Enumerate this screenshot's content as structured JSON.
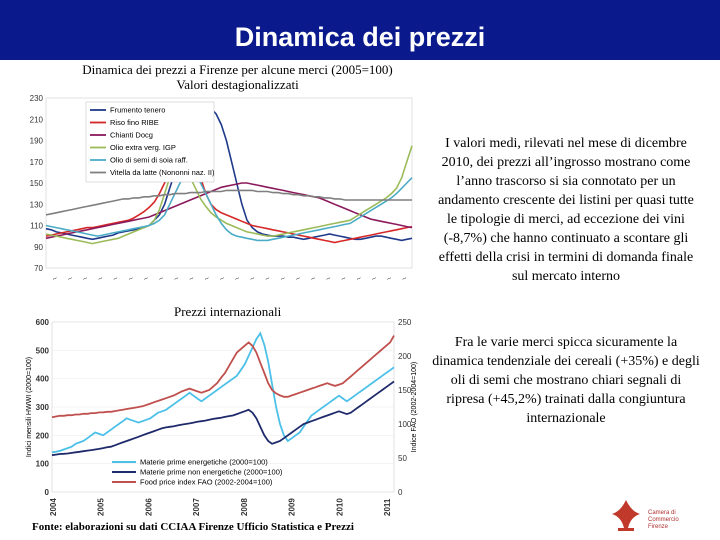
{
  "slide": {
    "title": "Dinamica dei prezzi",
    "chart1_caption_line1": "Dinamica dei prezzi a Firenze per alcune merci (2005=100)",
    "chart1_caption_line2": "Valori destagionalizzati",
    "chart2_label": "Prezzi internazionali",
    "paragraph1": "I valori medi, rilevati nel mese di dicembre 2010, dei prezzi all’ingrosso mostrano come l’anno trascorso si sia connotato per un andamento crescente dei listini per quasi tutte le tipologie di merci, ad eccezione dei vini (-8,7%) che hanno continuato a scontare gli effetti della crisi in termini di domanda finale sul mercato interno",
    "paragraph2": "Fra le varie merci spicca sicuramente la dinamica tendenziale dei cereali (+35%) e degli oli di semi che mostrano chiari segnali di ripresa (+45,2%) trainati dalla congiuntura internazionale",
    "source": "Fonte: elaborazioni su dati CCIAA Firenze Ufficio Statistica e Prezzi",
    "logo_text_line1": "Camera di Commercio",
    "logo_text_line2": "Firenze"
  },
  "chart_data": [
    {
      "type": "line",
      "title": "",
      "ylim": [
        70,
        230
      ],
      "yticks": [
        70,
        90,
        110,
        130,
        150,
        170,
        190,
        210,
        230
      ],
      "x": [
        0,
        1,
        2,
        3,
        4,
        5,
        6,
        7,
        8,
        9,
        10,
        11,
        12,
        13,
        14,
        15,
        16,
        17,
        18,
        19,
        20,
        21,
        22,
        23,
        24,
        25,
        26,
        27,
        28,
        29,
        30,
        31,
        32,
        33,
        34,
        35,
        36,
        37,
        38,
        39,
        40,
        41,
        42,
        43,
        44,
        45,
        46,
        47,
        48,
        49,
        50,
        51,
        52,
        53,
        54,
        55,
        56,
        57,
        58,
        59,
        60,
        61,
        62,
        63,
        64,
        65,
        66,
        67,
        68,
        69,
        70,
        71
      ],
      "legend_position": "top-left",
      "series": [
        {
          "name": "Frumento tenero",
          "color": "#1f3a8a",
          "values": [
            107,
            106,
            104,
            103,
            102,
            101,
            100,
            99,
            98,
            97,
            98,
            99,
            100,
            101,
            103,
            104,
            105,
            106,
            107,
            108,
            110,
            115,
            120,
            130,
            145,
            160,
            175,
            190,
            200,
            210,
            215,
            218,
            220,
            215,
            205,
            190,
            170,
            150,
            130,
            115,
            108,
            104,
            102,
            101,
            100,
            100,
            100,
            99,
            99,
            98,
            97,
            98,
            99,
            100,
            101,
            102,
            101,
            100,
            99,
            98,
            97,
            97,
            98,
            99,
            100,
            100,
            99,
            98,
            97,
            96,
            97,
            98
          ]
        },
        {
          "name": "Riso fino RIBE",
          "color": "#d62728",
          "values": [
            100,
            101,
            102,
            103,
            104,
            105,
            106,
            107,
            108,
            108,
            109,
            110,
            111,
            112,
            113,
            114,
            115,
            117,
            120,
            123,
            127,
            132,
            140,
            150,
            160,
            175,
            190,
            195,
            185,
            170,
            155,
            140,
            130,
            125,
            122,
            120,
            118,
            116,
            114,
            112,
            110,
            109,
            108,
            107,
            106,
            105,
            104,
            103,
            102,
            101,
            100,
            99,
            98,
            97,
            96,
            95,
            94,
            95,
            96,
            97,
            98,
            99,
            100,
            101,
            102,
            103,
            104,
            105,
            106,
            107,
            108,
            109
          ]
        },
        {
          "name": "Chianti Docg",
          "color": "#8b1a5c",
          "values": [
            98,
            99,
            100,
            101,
            102,
            103,
            104,
            105,
            106,
            107,
            108,
            109,
            110,
            111,
            112,
            113,
            114,
            115,
            116,
            117,
            118,
            120,
            122,
            124,
            126,
            128,
            130,
            132,
            134,
            136,
            138,
            140,
            142,
            144,
            146,
            147,
            148,
            149,
            150,
            150,
            149,
            148,
            147,
            146,
            145,
            144,
            143,
            142,
            141,
            140,
            139,
            138,
            137,
            136,
            134,
            132,
            130,
            128,
            126,
            124,
            122,
            120,
            118,
            116,
            115,
            114,
            113,
            112,
            111,
            110,
            109,
            108
          ]
        },
        {
          "name": "Olio extra verg. IGP",
          "color": "#9bbb59",
          "values": [
            102,
            101,
            100,
            99,
            98,
            97,
            96,
            95,
            94,
            93,
            94,
            95,
            96,
            97,
            98,
            100,
            102,
            104,
            106,
            108,
            110,
            115,
            125,
            140,
            155,
            165,
            168,
            165,
            155,
            145,
            135,
            128,
            122,
            118,
            115,
            112,
            110,
            108,
            106,
            104,
            103,
            102,
            101,
            100,
            100,
            101,
            102,
            103,
            104,
            105,
            106,
            107,
            108,
            109,
            110,
            111,
            112,
            113,
            114,
            115,
            118,
            121,
            124,
            127,
            130,
            133,
            136,
            140,
            145,
            155,
            170,
            185
          ]
        },
        {
          "name": "Olio di semi di soia raff.",
          "color": "#4bacc6",
          "values": [
            110,
            109,
            108,
            107,
            106,
            105,
            104,
            103,
            102,
            101,
            100,
            101,
            102,
            103,
            104,
            105,
            106,
            107,
            108,
            109,
            110,
            112,
            115,
            120,
            130,
            140,
            150,
            160,
            165,
            160,
            150,
            140,
            130,
            120,
            112,
            106,
            102,
            100,
            99,
            98,
            97,
            96,
            96,
            96,
            97,
            98,
            99,
            100,
            101,
            102,
            103,
            104,
            105,
            106,
            107,
            108,
            109,
            110,
            111,
            112,
            115,
            118,
            121,
            124,
            127,
            130,
            133,
            136,
            140,
            145,
            150,
            155
          ]
        },
        {
          "name": "Vitella da latte (Nononni naz. II)",
          "color": "#7f7f7f",
          "values": [
            120,
            121,
            122,
            123,
            124,
            125,
            126,
            127,
            128,
            129,
            130,
            131,
            132,
            133,
            134,
            135,
            135,
            136,
            136,
            137,
            137,
            138,
            138,
            139,
            139,
            140,
            140,
            140,
            141,
            141,
            141,
            142,
            142,
            142,
            142,
            143,
            143,
            143,
            143,
            143,
            143,
            142,
            142,
            142,
            141,
            141,
            140,
            140,
            139,
            139,
            138,
            138,
            137,
            137,
            136,
            136,
            135,
            135,
            134,
            134,
            134,
            134,
            134,
            134,
            134,
            134,
            134,
            134,
            134,
            134,
            134,
            134
          ]
        }
      ]
    },
    {
      "type": "line",
      "title": "Prezzi internazionali",
      "ylabel_left": "Indici mensili HWWI (2000=100)",
      "ylabel_right": "Indice FAO (2002-2004=100)",
      "ylim": [
        0,
        600
      ],
      "yticks": [
        0,
        100,
        200,
        300,
        400,
        500,
        600
      ],
      "ylim_right": [
        0,
        250
      ],
      "yticks_right": [
        0,
        50,
        100,
        150,
        200,
        250
      ],
      "categories": [
        "2004",
        "2005",
        "2006",
        "2007",
        "2008",
        "2009",
        "2010",
        "2011"
      ],
      "x": [
        0,
        1,
        2,
        3,
        4,
        5,
        6,
        7,
        8,
        9,
        10,
        11,
        12,
        13,
        14,
        15,
        16,
        17,
        18,
        19,
        20,
        21,
        22,
        23,
        24,
        25,
        26,
        27,
        28,
        29,
        30,
        31,
        32,
        33,
        34,
        35,
        36,
        37,
        38,
        39,
        40,
        41,
        42,
        43,
        44,
        45,
        46,
        47,
        48,
        49,
        50,
        51,
        52,
        53,
        54,
        55,
        56,
        57,
        58,
        59,
        60,
        61,
        62,
        63,
        64,
        65,
        66,
        67,
        68,
        69,
        70,
        71,
        72,
        73,
        74,
        75,
        76,
        77,
        78,
        79,
        80,
        81,
        82,
        83,
        84,
        85,
        86,
        87
      ],
      "legend_position": "bottom-left",
      "series": [
        {
          "name": "Materie prime energetiche (2000=100)",
          "color": "#4bc0e8",
          "axis": "left",
          "values": [
            140,
            142,
            145,
            150,
            155,
            160,
            170,
            175,
            180,
            190,
            200,
            210,
            205,
            200,
            210,
            220,
            230,
            240,
            250,
            260,
            255,
            250,
            245,
            250,
            255,
            260,
            270,
            280,
            285,
            290,
            300,
            310,
            320,
            330,
            340,
            350,
            340,
            330,
            320,
            330,
            340,
            350,
            360,
            370,
            380,
            390,
            400,
            410,
            430,
            450,
            480,
            510,
            540,
            560,
            520,
            460,
            380,
            300,
            240,
            200,
            180,
            190,
            200,
            210,
            230,
            250,
            270,
            280,
            290,
            300,
            310,
            320,
            330,
            340,
            330,
            320,
            330,
            340,
            350,
            360,
            370,
            380,
            390,
            400,
            410,
            420,
            430,
            440
          ]
        },
        {
          "name": "Materie prime non energetiche (2000=100)",
          "color": "#1f2a6b",
          "axis": "left",
          "values": [
            130,
            132,
            134,
            135,
            136,
            138,
            140,
            142,
            144,
            146,
            148,
            150,
            152,
            155,
            158,
            160,
            165,
            170,
            175,
            180,
            185,
            190,
            195,
            200,
            205,
            210,
            215,
            220,
            225,
            228,
            230,
            232,
            235,
            238,
            240,
            242,
            245,
            248,
            250,
            252,
            255,
            258,
            260,
            262,
            265,
            268,
            270,
            275,
            280,
            285,
            290,
            280,
            260,
            230,
            200,
            180,
            170,
            175,
            180,
            190,
            200,
            210,
            220,
            230,
            240,
            245,
            250,
            255,
            260,
            265,
            270,
            275,
            280,
            285,
            280,
            275,
            280,
            290,
            300,
            310,
            320,
            330,
            340,
            350,
            360,
            370,
            380,
            390
          ]
        },
        {
          "name": "Food price index FAO (2002-2004=100)",
          "color": "#c0504d",
          "axis": "right",
          "values": [
            110,
            111,
            112,
            112,
            113,
            113,
            114,
            114,
            115,
            115,
            116,
            116,
            117,
            117,
            118,
            118,
            119,
            120,
            121,
            122,
            123,
            124,
            125,
            126,
            128,
            130,
            132,
            134,
            136,
            138,
            140,
            142,
            145,
            148,
            150,
            152,
            150,
            148,
            146,
            148,
            150,
            155,
            160,
            168,
            175,
            185,
            195,
            205,
            210,
            215,
            220,
            215,
            205,
            190,
            175,
            160,
            150,
            145,
            142,
            140,
            140,
            142,
            144,
            146,
            148,
            150,
            152,
            154,
            156,
            158,
            160,
            158,
            156,
            158,
            160,
            165,
            170,
            175,
            180,
            185,
            190,
            195,
            200,
            205,
            210,
            215,
            220,
            230
          ]
        }
      ]
    }
  ]
}
